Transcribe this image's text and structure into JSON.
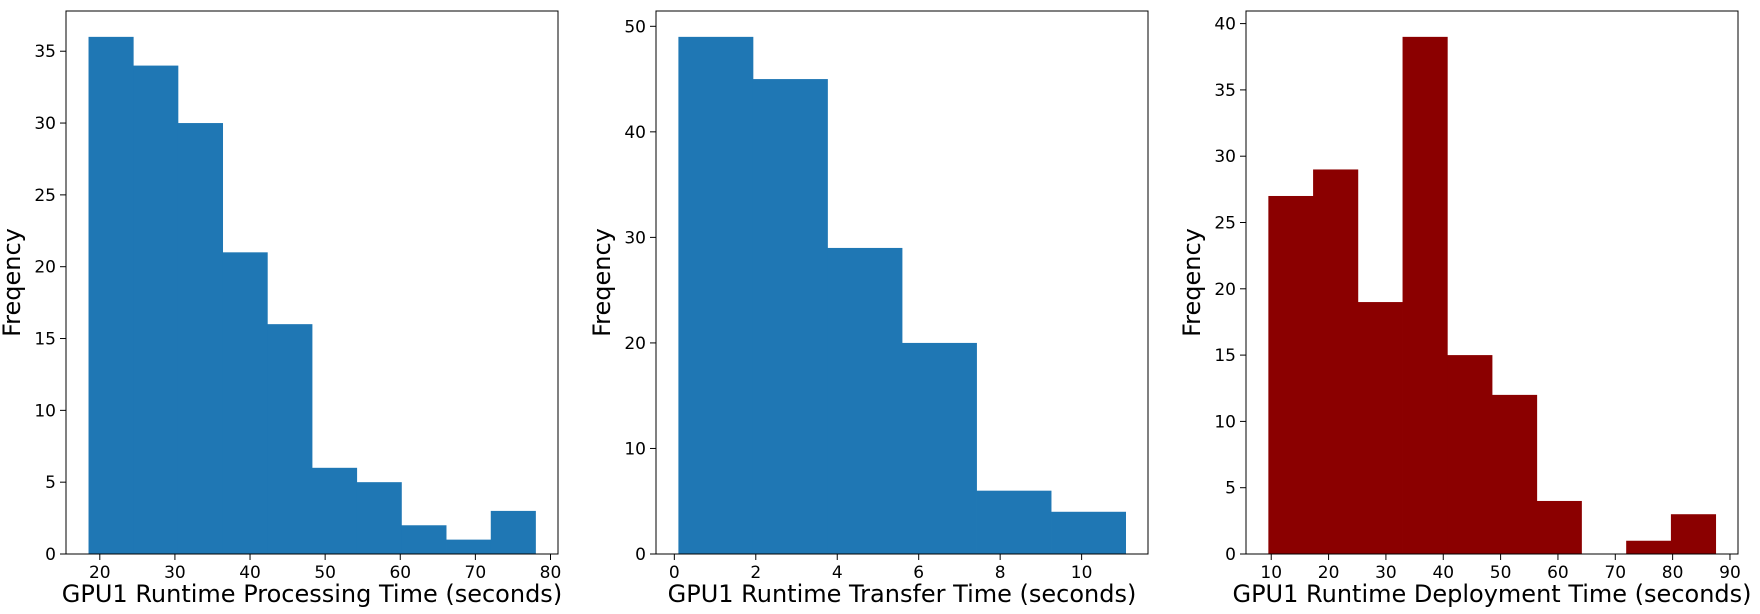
{
  "chart_data": [
    {
      "type": "bar",
      "xlabel": "GPU1 Runtime Processing Time (seconds)",
      "ylabel": "Freqency",
      "color": "#1f77b4",
      "bin_edges": [
        18.5,
        24.45,
        30.4,
        36.35,
        42.3,
        48.25,
        54.2,
        60.15,
        66.1,
        72.05,
        78.0
      ],
      "values": [
        36,
        34,
        30,
        21,
        16,
        6,
        5,
        2,
        1,
        3
      ],
      "xlim": [
        15.5,
        81.0
      ],
      "ylim": [
        0,
        37.8
      ],
      "xticks": [
        20,
        30,
        40,
        50,
        60,
        70,
        80
      ],
      "yticks": [
        0,
        5,
        10,
        15,
        20,
        25,
        30,
        35
      ],
      "grid": false
    },
    {
      "type": "bar",
      "xlabel": "GPU1 Runtime Transfer Time (seconds)",
      "ylabel": "Freqency",
      "color": "#1f77b4",
      "bin_edges": [
        0.1,
        1.93,
        3.76,
        5.59,
        7.42,
        9.25,
        11.08
      ],
      "values": [
        49,
        45,
        29,
        20,
        6,
        4
      ],
      "xlim": [
        -0.45,
        11.63
      ],
      "ylim": [
        0,
        51.45
      ],
      "xticks": [
        0,
        2,
        4,
        6,
        8,
        10
      ],
      "yticks": [
        0,
        10,
        20,
        30,
        40,
        50
      ],
      "grid": false
    },
    {
      "type": "bar",
      "xlabel": "GPU1 Runtime Deployment Time (seconds)",
      "ylabel": "Freqency",
      "color": "#8b0000",
      "bin_edges": [
        9.5,
        17.3,
        25.1,
        32.9,
        40.7,
        48.5,
        56.3,
        64.1,
        71.9,
        79.7,
        87.5
      ],
      "values": [
        27,
        29,
        19,
        39,
        15,
        12,
        4,
        0,
        1,
        3
      ],
      "xlim": [
        5.6,
        91.4
      ],
      "ylim": [
        0,
        40.95
      ],
      "xticks": [
        10,
        20,
        30,
        40,
        50,
        60,
        70,
        80,
        90
      ],
      "yticks": [
        0,
        5,
        10,
        15,
        20,
        25,
        30,
        35,
        40
      ],
      "grid": false
    }
  ]
}
